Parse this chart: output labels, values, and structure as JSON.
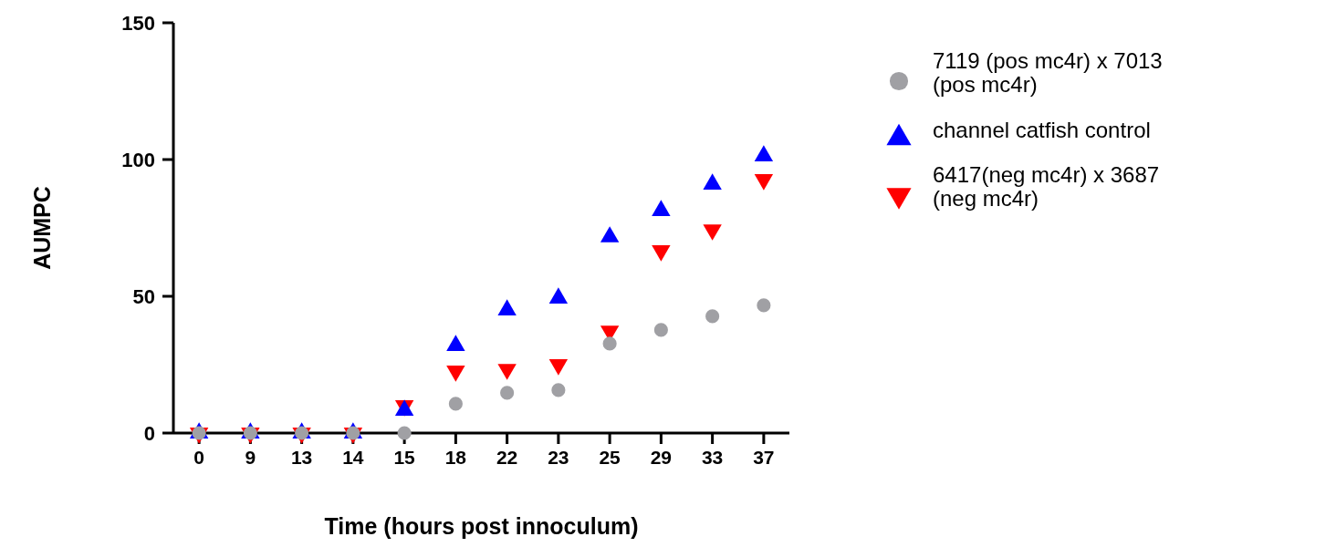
{
  "chart_data": {
    "type": "scatter",
    "xlabel": "Time (hours post innoculum)",
    "ylabel": "AUMPC",
    "categories": [
      "0",
      "9",
      "13",
      "14",
      "15",
      "18",
      "22",
      "23",
      "25",
      "29",
      "33",
      "37"
    ],
    "ylim": [
      0,
      150
    ],
    "yticks": [
      0,
      50,
      100,
      150
    ],
    "grid": false,
    "legend": "top right",
    "series": [
      {
        "name": "7119 (pos mc4r) x 7013 (pos mc4r)",
        "color": "#a0a0a4",
        "marker": "circle",
        "values": [
          0,
          0,
          0,
          0,
          0,
          10.7,
          14.7,
          15.7,
          32.7,
          37.7,
          42.7,
          46.7
        ]
      },
      {
        "name": "channel catfish control",
        "color": "#0000ff",
        "marker": "triangle",
        "values": [
          0,
          0,
          0,
          0,
          8.3,
          32,
          45,
          49.3,
          71.7,
          81.3,
          91,
          101.3
        ]
      },
      {
        "name": "6417(neg mc4r) x 3687 (neg mc4r)",
        "color": "#ff0000",
        "marker": "triangle-down",
        "values": [
          0,
          0,
          0,
          0,
          10,
          22.7,
          23.3,
          25,
          37.3,
          66.7,
          74.3,
          92.7
        ]
      }
    ]
  }
}
